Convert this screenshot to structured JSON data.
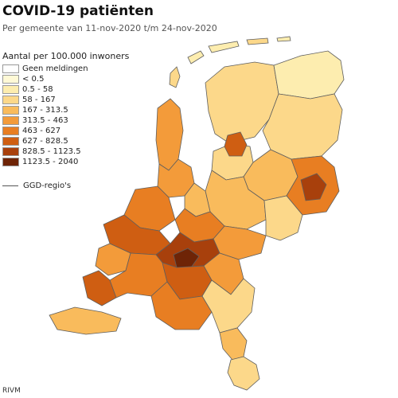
{
  "title": "COVID-19 patiënten",
  "subtitle": "Per gemeente van 11-nov-2020 t/m 24-nov-2020",
  "legend": {
    "title": "Aantal per 100.000 inwoners",
    "items": [
      {
        "label": "Geen meldingen",
        "color": "#ffffff"
      },
      {
        "label": "< 0.5",
        "color": "#fff9d6"
      },
      {
        "label": "0.5 - 58",
        "color": "#fdedaf"
      },
      {
        "label": "58 - 167",
        "color": "#fcd88a"
      },
      {
        "label": "167 - 313.5",
        "color": "#f9bb5c"
      },
      {
        "label": "313.5 - 463",
        "color": "#f39b3a"
      },
      {
        "label": "463 - 627",
        "color": "#e87e22"
      },
      {
        "label": "627 - 828.5",
        "color": "#cf5e12"
      },
      {
        "label": "828.5 - 1123.5",
        "color": "#a8400c"
      },
      {
        "label": "1123.5 - 2040",
        "color": "#6e2406"
      }
    ],
    "ggd_label": "GGD-regio's"
  },
  "source": "RIVM",
  "colors": {
    "border": "#5e5e5e",
    "municipal_border": "#ffffff"
  }
}
